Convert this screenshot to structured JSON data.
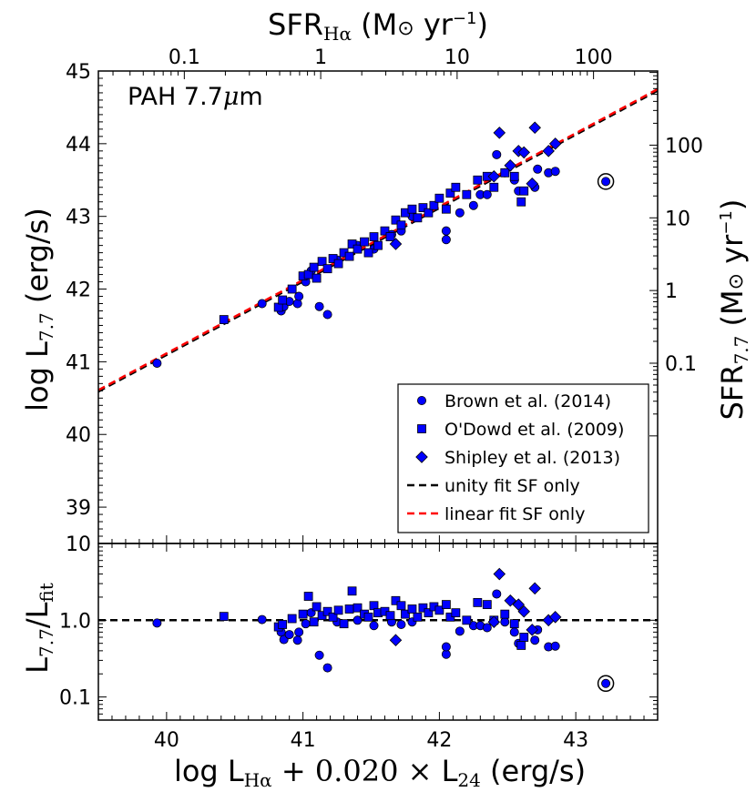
{
  "chart_data": [
    {
      "type": "scatter",
      "panel": "main",
      "xlabel": "log L_Hα + 0.020 × L_24 (erg/s)",
      "ylabel": "log L_7.7 (erg/s)",
      "xlim": [
        39.5,
        43.6
      ],
      "ylim": [
        38.5,
        45
      ],
      "xticks": [
        40,
        41,
        42,
        43
      ],
      "yticks": [
        39,
        40,
        41,
        42,
        43,
        44,
        45
      ],
      "top_axis": {
        "label": "SFR_Hα (M⊙ yr⁻¹)",
        "ticks": [
          "0.1",
          "1",
          "10",
          "100"
        ],
        "scale": "log"
      },
      "right_axis": {
        "label": "SFR_7.7 (M⊙ yr⁻¹)",
        "ticks": [
          "0.1",
          "1",
          "10",
          "100"
        ],
        "scale": "log"
      },
      "annotation": "PAH 7.7μm",
      "legend_position": "lower-right",
      "series": [
        {
          "name": "Brown et al. (2014)",
          "marker": "circle",
          "color": "#0000ff",
          "points": [
            [
              39.93,
              40.98
            ],
            [
              40.7,
              41.8
            ],
            [
              40.84,
              41.7
            ],
            [
              40.86,
              41.76
            ],
            [
              40.9,
              41.83
            ],
            [
              40.96,
              41.8
            ],
            [
              40.97,
              41.9
            ],
            [
              41.02,
              42.1
            ],
            [
              41.06,
              42.25
            ],
            [
              41.12,
              41.76
            ],
            [
              41.18,
              41.65
            ],
            [
              41.25,
              42.4
            ],
            [
              41.4,
              42.6
            ],
            [
              41.52,
              42.55
            ],
            [
              41.65,
              42.75
            ],
            [
              41.72,
              42.8
            ],
            [
              41.8,
              43.0
            ],
            [
              42.05,
              42.68
            ],
            [
              42.05,
              42.8
            ],
            [
              42.15,
              43.05
            ],
            [
              42.25,
              43.15
            ],
            [
              42.3,
              43.3
            ],
            [
              42.35,
              43.3
            ],
            [
              42.42,
              43.85
            ],
            [
              42.48,
              43.6
            ],
            [
              42.55,
              43.5
            ],
            [
              42.58,
              43.35
            ],
            [
              42.7,
              43.4
            ],
            [
              42.72,
              43.65
            ],
            [
              42.8,
              43.6
            ],
            [
              42.85,
              43.62
            ],
            [
              43.22,
              43.48
            ]
          ]
        },
        {
          "name": "O'Dowd et al. (2009)",
          "marker": "square",
          "color": "#0000ff",
          "points": [
            [
              40.42,
              41.58
            ],
            [
              40.82,
              41.75
            ],
            [
              40.85,
              41.85
            ],
            [
              40.92,
              42.0
            ],
            [
              41.0,
              42.18
            ],
            [
              41.04,
              42.2
            ],
            [
              41.08,
              42.3
            ],
            [
              41.1,
              42.15
            ],
            [
              41.14,
              42.38
            ],
            [
              41.18,
              42.28
            ],
            [
              41.22,
              42.42
            ],
            [
              41.26,
              42.35
            ],
            [
              41.3,
              42.5
            ],
            [
              41.34,
              42.45
            ],
            [
              41.36,
              42.62
            ],
            [
              41.4,
              42.55
            ],
            [
              41.45,
              42.65
            ],
            [
              41.48,
              42.5
            ],
            [
              41.52,
              42.72
            ],
            [
              41.55,
              42.6
            ],
            [
              41.6,
              42.8
            ],
            [
              41.64,
              42.72
            ],
            [
              41.68,
              42.95
            ],
            [
              41.72,
              42.88
            ],
            [
              41.75,
              43.05
            ],
            [
              41.8,
              43.1
            ],
            [
              41.84,
              42.98
            ],
            [
              41.88,
              43.12
            ],
            [
              41.92,
              43.05
            ],
            [
              41.96,
              43.15
            ],
            [
              42.0,
              43.25
            ],
            [
              42.05,
              43.1
            ],
            [
              42.08,
              43.32
            ],
            [
              42.12,
              43.4
            ],
            [
              42.2,
              43.3
            ],
            [
              42.28,
              43.5
            ],
            [
              42.35,
              43.55
            ],
            [
              42.4,
              43.4
            ],
            [
              42.48,
              43.6
            ],
            [
              42.55,
              43.55
            ],
            [
              42.6,
              43.2
            ],
            [
              42.62,
              43.35
            ]
          ]
        },
        {
          "name": "Shipley et al. (2013)",
          "marker": "diamond",
          "color": "#0000ff",
          "points": [
            [
              41.68,
              42.62
            ],
            [
              42.4,
              43.55
            ],
            [
              42.44,
              44.15
            ],
            [
              42.52,
              43.7
            ],
            [
              42.58,
              43.9
            ],
            [
              42.62,
              43.88
            ],
            [
              42.68,
              43.45
            ],
            [
              42.7,
              44.22
            ],
            [
              42.8,
              43.9
            ],
            [
              42.85,
              44.0
            ]
          ]
        },
        {
          "name": "unity fit SF only",
          "line": "dashed",
          "color": "#000000",
          "x": [
            39.5,
            43.6
          ],
          "y": [
            40.59,
            44.73
          ]
        },
        {
          "name": "linear fit SF only",
          "line": "dashed",
          "color": "#ff0000",
          "x": [
            39.5,
            43.6
          ],
          "y": [
            40.61,
            44.75
          ]
        }
      ]
    },
    {
      "type": "scatter",
      "panel": "residual",
      "xlabel": "log L_Hα + 0.020 × L_24 (erg/s)",
      "ylabel": "L_7.7/L_fit",
      "xlim": [
        39.5,
        43.6
      ],
      "ylim": [
        0.05,
        10
      ],
      "yscale": "log",
      "yticks": [
        "0.1",
        "1.0",
        "10"
      ],
      "reference_line": 1.0,
      "series": [
        {
          "name": "Brown et al. (2014)",
          "marker": "circle",
          "points": [
            [
              39.93,
              0.92
            ],
            [
              40.7,
              1.02
            ],
            [
              40.84,
              0.7
            ],
            [
              40.86,
              0.56
            ],
            [
              40.9,
              0.65
            ],
            [
              40.96,
              0.55
            ],
            [
              40.97,
              0.7
            ],
            [
              41.02,
              0.9
            ],
            [
              41.06,
              1.25
            ],
            [
              41.12,
              0.35
            ],
            [
              41.18,
              0.24
            ],
            [
              41.25,
              0.95
            ],
            [
              41.4,
              1.0
            ],
            [
              41.52,
              0.85
            ],
            [
              41.65,
              0.95
            ],
            [
              41.72,
              0.88
            ],
            [
              41.8,
              0.95
            ],
            [
              42.05,
              0.36
            ],
            [
              42.05,
              0.45
            ],
            [
              42.15,
              0.72
            ],
            [
              42.25,
              0.85
            ],
            [
              42.3,
              0.85
            ],
            [
              42.35,
              0.8
            ],
            [
              42.42,
              2.2
            ],
            [
              42.48,
              0.95
            ],
            [
              42.55,
              0.7
            ],
            [
              42.58,
              0.5
            ],
            [
              42.7,
              0.55
            ],
            [
              42.72,
              0.75
            ],
            [
              42.8,
              0.45
            ],
            [
              42.85,
              0.46
            ],
            [
              43.22,
              0.15
            ]
          ]
        },
        {
          "name": "O'Dowd et al. (2009)",
          "marker": "square",
          "points": [
            [
              40.42,
              1.12
            ],
            [
              40.82,
              0.82
            ],
            [
              40.85,
              0.88
            ],
            [
              40.92,
              1.05
            ],
            [
              41.0,
              1.2
            ],
            [
              41.04,
              2.05
            ],
            [
              41.08,
              0.95
            ],
            [
              41.1,
              1.5
            ],
            [
              41.14,
              1.15
            ],
            [
              41.18,
              1.3
            ],
            [
              41.22,
              1.1
            ],
            [
              41.26,
              1.35
            ],
            [
              41.3,
              0.9
            ],
            [
              41.34,
              1.4
            ],
            [
              41.36,
              2.4
            ],
            [
              41.4,
              1.45
            ],
            [
              41.45,
              1.2
            ],
            [
              41.48,
              1.1
            ],
            [
              41.52,
              1.55
            ],
            [
              41.55,
              1.25
            ],
            [
              41.6,
              1.3
            ],
            [
              41.64,
              1.15
            ],
            [
              41.68,
              1.8
            ],
            [
              41.72,
              1.55
            ],
            [
              41.75,
              1.2
            ],
            [
              41.8,
              1.4
            ],
            [
              41.84,
              1.1
            ],
            [
              41.88,
              1.45
            ],
            [
              41.92,
              1.25
            ],
            [
              41.96,
              1.5
            ],
            [
              42.0,
              1.35
            ],
            [
              42.05,
              1.6
            ],
            [
              42.08,
              1.1
            ],
            [
              42.12,
              1.25
            ],
            [
              42.2,
              1.0
            ],
            [
              42.28,
              1.7
            ],
            [
              42.35,
              1.6
            ],
            [
              42.4,
              1.0
            ],
            [
              42.48,
              1.2
            ],
            [
              42.55,
              0.9
            ],
            [
              42.6,
              0.47
            ],
            [
              42.62,
              0.6
            ]
          ]
        },
        {
          "name": "Shipley et al. (2013)",
          "marker": "diamond",
          "points": [
            [
              41.68,
              0.55
            ],
            [
              42.4,
              0.95
            ],
            [
              42.44,
              4.0
            ],
            [
              42.52,
              1.8
            ],
            [
              42.58,
              1.6
            ],
            [
              42.62,
              1.3
            ],
            [
              42.68,
              0.75
            ],
            [
              42.7,
              2.6
            ],
            [
              42.8,
              1.0
            ],
            [
              42.85,
              1.1
            ]
          ]
        }
      ]
    }
  ]
}
